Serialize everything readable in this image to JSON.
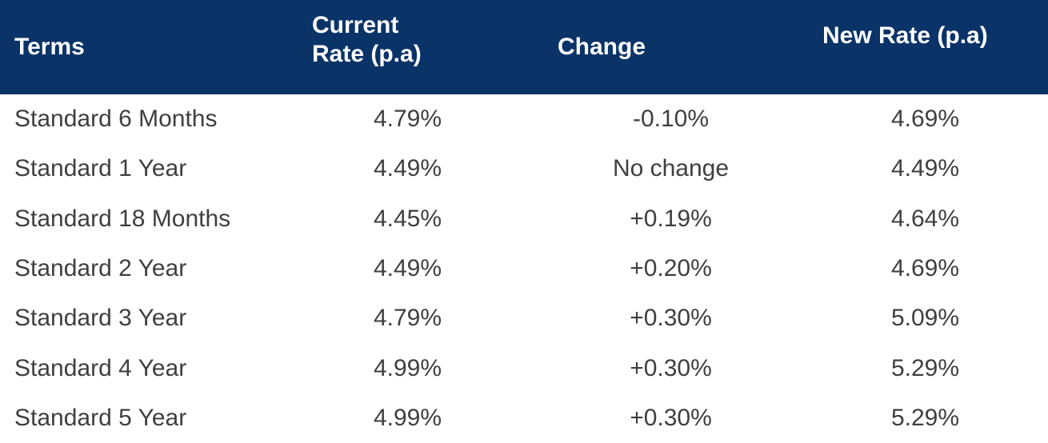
{
  "chart_data": {
    "type": "table",
    "columns": [
      "Terms",
      "Current Rate (p.a)",
      "Change",
      "New Rate (p.a)"
    ],
    "rows": [
      [
        "Standard 6 Months",
        "4.79%",
        "-0.10%",
        "4.69%"
      ],
      [
        "Standard 1 Year",
        "4.49%",
        "No change",
        "4.49%"
      ],
      [
        "Standard 18 Months",
        "4.45%",
        "+0.19%",
        "4.64%"
      ],
      [
        "Standard 2 Year",
        "4.49%",
        "+0.20%",
        "4.69%"
      ],
      [
        "Standard 3 Year",
        "4.79%",
        "+0.30%",
        "5.09%"
      ],
      [
        "Standard 4 Year",
        "4.99%",
        "+0.30%",
        "5.29%"
      ],
      [
        "Standard 5 Year",
        "4.99%",
        "+0.30%",
        "5.29%"
      ]
    ],
    "legend": null,
    "grid": false
  },
  "colors": {
    "header_bg": "#0a3368",
    "header_text": "#ffffff",
    "body_text": "#3f3f3f",
    "body_bg": "#ffffff"
  }
}
